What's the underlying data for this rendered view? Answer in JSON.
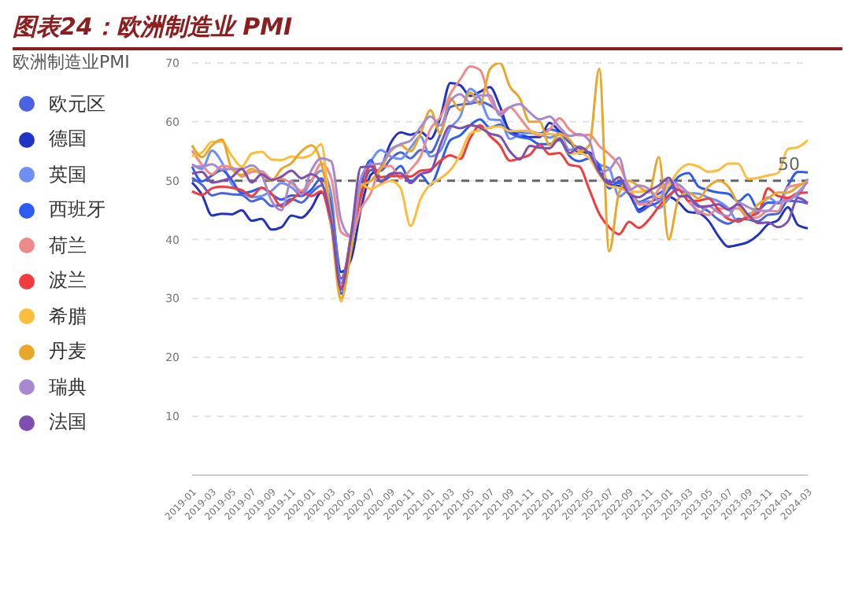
{
  "chart_data": {
    "type": "line",
    "title": "图表24：欧洲制造业 PMI",
    "legend_title": "欧洲制造业PMI",
    "categories": [
      "2019-01",
      null,
      "2019-03",
      null,
      "2019-05",
      null,
      "2019-07",
      null,
      "2019-09",
      null,
      "2019-11",
      null,
      "2020-01",
      null,
      "2020-03",
      null,
      "2020-05",
      null,
      "2020-07",
      null,
      "2020-09",
      null,
      "2020-11",
      null,
      "2021-01",
      null,
      "2021-03",
      null,
      "2021-05",
      null,
      "2021-07",
      null,
      "2021-09",
      null,
      "2021-11",
      null,
      "2022-01",
      null,
      "2022-03",
      null,
      "2022-05",
      null,
      "2022-07",
      null,
      "2022-09",
      null,
      "2022-11",
      null,
      "2023-01",
      null,
      "2023-03",
      null,
      "2023-05",
      null,
      "2023-07",
      null,
      "2023-09",
      null,
      "2023-11",
      null,
      "2024-01",
      null,
      "2024-03"
    ],
    "series": [
      {
        "name": "欧元区",
        "color": "#4a63e0",
        "values": [
          50.5,
          49.3,
          47.5,
          47.9,
          47.7,
          47.6,
          46.5,
          47.0,
          45.7,
          45.9,
          46.9,
          46.3,
          47.9,
          49.2,
          44.5,
          33.4,
          39.4,
          47.4,
          51.8,
          51.7,
          53.7,
          54.8,
          53.8,
          55.2,
          54.8,
          57.9,
          62.5,
          62.9,
          63.1,
          63.4,
          62.8,
          61.4,
          58.6,
          58.3,
          58.4,
          58.0,
          58.7,
          58.2,
          56.5,
          55.5,
          54.6,
          52.1,
          49.8,
          49.6,
          48.4,
          46.4,
          47.1,
          47.8,
          48.8,
          48.5,
          47.3,
          45.8,
          44.8,
          43.4,
          42.7,
          43.5,
          43.4,
          43.1,
          44.2,
          44.4,
          46.6,
          46.5,
          46.1
        ]
      },
      {
        "name": "德国",
        "color": "#2233c4",
        "values": [
          49.7,
          47.6,
          44.1,
          44.4,
          44.3,
          45.0,
          43.2,
          43.5,
          41.7,
          42.1,
          44.1,
          43.7,
          45.3,
          48.0,
          45.4,
          34.5,
          36.6,
          45.2,
          51.0,
          52.2,
          56.4,
          58.2,
          57.8,
          58.3,
          57.1,
          60.7,
          66.6,
          66.2,
          64.4,
          65.1,
          65.9,
          62.6,
          58.4,
          57.8,
          57.4,
          57.4,
          59.8,
          58.4,
          56.9,
          54.6,
          54.8,
          52.0,
          49.3,
          49.1,
          47.8,
          45.1,
          46.2,
          47.1,
          47.3,
          46.3,
          44.7,
          44.5,
          43.2,
          40.6,
          38.8,
          39.1,
          39.6,
          40.8,
          42.6,
          43.3,
          45.5,
          42.5,
          41.9
        ]
      },
      {
        "name": "英国",
        "color": "#6f8ff5",
        "values": [
          52.8,
          52.0,
          55.1,
          53.1,
          49.4,
          48.0,
          47.2,
          47.4,
          48.3,
          49.6,
          48.9,
          47.5,
          50.0,
          51.7,
          47.8,
          32.6,
          40.7,
          50.1,
          53.3,
          55.2,
          54.1,
          53.7,
          55.6,
          57.5,
          54.1,
          55.1,
          58.9,
          60.9,
          65.6,
          63.9,
          60.4,
          60.3,
          57.1,
          57.8,
          58.1,
          57.9,
          57.3,
          58.0,
          55.2,
          55.8,
          54.6,
          52.8,
          52.1,
          47.3,
          48.4,
          46.2,
          46.5,
          45.3,
          47.0,
          49.3,
          47.9,
          47.8,
          47.1,
          46.5,
          45.3,
          43.0,
          44.3,
          44.8,
          47.2,
          46.2,
          47.0,
          47.5,
          50.3
        ]
      },
      {
        "name": "西班牙",
        "color": "#2f5bf5",
        "values": [
          52.4,
          49.9,
          50.9,
          51.8,
          50.1,
          47.9,
          48.2,
          48.8,
          47.7,
          46.8,
          47.5,
          47.4,
          48.5,
          50.4,
          45.7,
          30.8,
          38.3,
          49.0,
          53.5,
          49.9,
          50.8,
          52.5,
          49.8,
          51.0,
          49.3,
          52.9,
          56.9,
          57.7,
          59.4,
          60.4,
          59.0,
          59.5,
          58.1,
          57.4,
          57.1,
          56.2,
          56.2,
          56.9,
          54.2,
          53.3,
          53.8,
          52.6,
          48.7,
          49.9,
          49.0,
          44.7,
          45.7,
          46.4,
          48.4,
          50.7,
          51.3,
          49.0,
          48.4,
          48.0,
          47.8,
          46.5,
          47.7,
          45.1,
          46.3,
          46.2,
          49.2,
          51.5,
          51.4
        ]
      },
      {
        "name": "荷兰",
        "color": "#f08a8a",
        "values": [
          55.1,
          52.7,
          51.1,
          52.5,
          52.3,
          50.7,
          51.5,
          51.6,
          50.3,
          50.3,
          49.6,
          48.3,
          49.9,
          52.9,
          50.5,
          41.3,
          40.5,
          45.2,
          47.9,
          52.3,
          52.5,
          50.4,
          51.9,
          54.1,
          58.8,
          60.8,
          64.7,
          67.2,
          69.4,
          68.8,
          63.8,
          61.6,
          62.5,
          60.7,
          58.6,
          57.7,
          58.7,
          60.6,
          58.7,
          57.7,
          57.8,
          55.9,
          54.5,
          52.6,
          49.0,
          46.0,
          46.0,
          48.6,
          49.6,
          48.7,
          46.4,
          44.9,
          44.2,
          45.3,
          45.3,
          45.3,
          43.6,
          43.8,
          44.9,
          44.8,
          48.9,
          49.3,
          49.7
        ]
      },
      {
        "name": "波兰",
        "color": "#f23c3c",
        "values": [
          48.2,
          47.6,
          48.7,
          49.0,
          48.8,
          48.4,
          47.4,
          48.8,
          47.8,
          45.6,
          46.7,
          48.0,
          47.4,
          48.2,
          42.4,
          31.9,
          40.6,
          47.2,
          52.8,
          50.6,
          50.8,
          50.8,
          50.7,
          51.7,
          51.9,
          53.4,
          54.3,
          53.7,
          57.2,
          59.4,
          57.6,
          56.0,
          53.4,
          53.8,
          54.4,
          56.1,
          54.5,
          54.7,
          52.7,
          52.4,
          48.5,
          44.4,
          42.1,
          40.9,
          43.0,
          42.0,
          43.4,
          45.6,
          47.5,
          48.5,
          46.6,
          46.6,
          47.0,
          45.1,
          43.5,
          43.1,
          43.9,
          44.5,
          48.7,
          47.4,
          47.1,
          47.9,
          48.0
        ]
      },
      {
        "name": "希腊",
        "color": "#fbbd3b",
        "values": [
          54.2,
          54.8,
          56.6,
          56.6,
          54.2,
          52.4,
          54.6,
          54.9,
          53.6,
          53.5,
          54.1,
          53.9,
          54.4,
          56.2,
          42.5,
          29.5,
          41.1,
          49.4,
          48.6,
          49.4,
          50.0,
          48.7,
          42.3,
          46.9,
          49.4,
          50.4,
          51.8,
          54.4,
          58.0,
          58.6,
          59.0,
          59.2,
          58.4,
          58.5,
          58.4,
          57.9,
          57.9,
          57.8,
          54.6,
          54.7,
          53.8,
          51.1,
          49.1,
          48.8,
          48.2,
          48.1,
          48.4,
          47.2,
          49.2,
          51.7,
          52.8,
          52.4,
          51.5,
          51.8,
          52.9,
          52.9,
          50.3,
          50.5,
          50.9,
          51.3,
          55.4,
          55.7,
          56.9
        ]
      },
      {
        "name": "丹麦",
        "color": "#e8a62a",
        "values": [
          56.0,
          54.0,
          56.0,
          57.0,
          52.0,
          51.0,
          52.0,
          51.0,
          50.0,
          52.0,
          53.0,
          55.0,
          56.0,
          53.0,
          44.0,
          30.0,
          38.0,
          49.0,
          50.0,
          52.0,
          55.0,
          56.0,
          55.0,
          58.0,
          62.0,
          58.0,
          64.0,
          62.0,
          65.0,
          63.0,
          69.0,
          70.0,
          66.0,
          64.0,
          60.0,
          60.0,
          56.0,
          58.0,
          57.0,
          55.0,
          56.0,
          69.0,
          38.0,
          48.0,
          50.0,
          49.0,
          48.0,
          54.0,
          40.0,
          47.0,
          48.0,
          47.0,
          49.0,
          50.0,
          49.0,
          46.0,
          44.0,
          46.0,
          47.0,
          48.0,
          48.0,
          49.0,
          50.0
        ]
      },
      {
        "name": "瑞典",
        "color": "#a889cf",
        "values": [
          52.5,
          52.4,
          52.8,
          51.9,
          52.0,
          52.0,
          52.6,
          51.0,
          46.6,
          45.0,
          50.0,
          47.6,
          51.7,
          53.8,
          53.3,
          43.3,
          40.6,
          50.4,
          52.8,
          52.9,
          55.3,
          56.2,
          56.8,
          59.1,
          60.9,
          59.4,
          63.5,
          64.7,
          63.3,
          64.5,
          64.5,
          61.1,
          62.5,
          63.0,
          61.6,
          60.4,
          60.9,
          59.1,
          57.6,
          57.9,
          56.8,
          51.5,
          51.9,
          53.9,
          48.4,
          49.2,
          48.6,
          46.6,
          50.0,
          49.3,
          47.7,
          44.4,
          45.7,
          44.6,
          44.0,
          46.3,
          45.5,
          44.9,
          44.9,
          46.4,
          46.6,
          48.0,
          49.8
        ]
      },
      {
        "name": "法国",
        "color": "#7e4fae",
        "values": [
          51.2,
          51.5,
          49.7,
          50.0,
          50.6,
          52.0,
          49.7,
          51.1,
          50.1,
          50.7,
          51.7,
          50.4,
          51.1,
          49.8,
          43.2,
          31.5,
          40.6,
          52.3,
          52.4,
          49.8,
          51.2,
          51.3,
          49.6,
          51.1,
          51.6,
          56.1,
          59.3,
          58.9,
          59.4,
          59.0,
          58.0,
          57.5,
          55.0,
          53.6,
          55.9,
          55.6,
          55.5,
          57.2,
          54.7,
          55.7,
          54.6,
          51.4,
          49.5,
          50.6,
          47.7,
          47.2,
          48.3,
          49.2,
          50.5,
          47.4,
          47.3,
          45.6,
          45.7,
          46.0,
          45.1,
          46.0,
          44.2,
          42.8,
          42.9,
          42.1,
          43.1,
          47.1,
          46.2
        ]
      }
    ],
    "ylim": [
      0,
      70
    ],
    "yticks": [
      10,
      20,
      30,
      40,
      50,
      60,
      70
    ],
    "grid": "y",
    "legend": "left",
    "marker": "none",
    "line_style": "solid",
    "ref_lines": [
      {
        "axis": "y",
        "value": 50,
        "label": "50",
        "color": "#666666",
        "line_style": "dashed"
      }
    ]
  }
}
